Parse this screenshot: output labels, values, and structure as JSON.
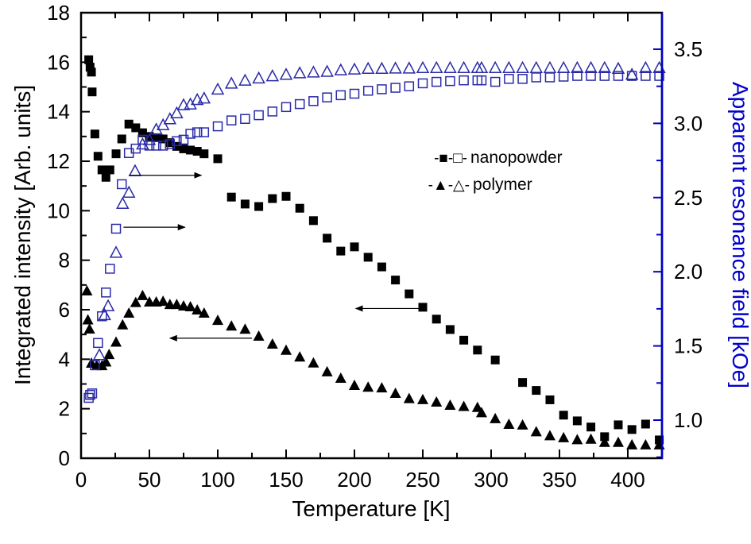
{
  "chart_data": {
    "type": "scatter",
    "title": "",
    "xlabel": "Temperature [K]",
    "ylabel": "Integrated intensity [Arb. units]",
    "y2label": "Apparent resonance field [kOe]",
    "xlim": [
      0,
      425
    ],
    "ylim": [
      0,
      18
    ],
    "y2lim": [
      0.743,
      3.746
    ],
    "xticks": [
      "0",
      "50",
      "100",
      "150",
      "200",
      "250",
      "300",
      "350",
      "400"
    ],
    "yticks": [
      "0",
      "2",
      "4",
      "6",
      "8",
      "10",
      "12",
      "14",
      "16",
      "18"
    ],
    "y2ticks": [
      "1.0",
      "1.5",
      "2.0",
      "2.5",
      "3.0",
      "3.5"
    ],
    "grid": false,
    "legend": {
      "placement": "upper-right-middle",
      "entries": [
        {
          "prefix": "-■-□-",
          "label": "nanopowder"
        },
        {
          "prefix": "-▲-△-",
          "label": "polymer"
        }
      ]
    },
    "colors": {
      "left_axis": "#000000",
      "right_axis": "#0000cc",
      "open_markers": "#2a2aa8"
    },
    "series": [
      {
        "name": "nanopowder intensity",
        "axis": "left",
        "marker": "filled-square",
        "points": [
          [
            5.6,
            16.1
          ],
          [
            6.6,
            15.8
          ],
          [
            7.6,
            15.6
          ],
          [
            8.1,
            14.8
          ],
          [
            10.1,
            13.1
          ],
          [
            12.4,
            12.2
          ],
          [
            15.3,
            11.65
          ],
          [
            18.2,
            11.35
          ],
          [
            21.1,
            11.65
          ],
          [
            25.6,
            12.3
          ],
          [
            29.8,
            12.9
          ],
          [
            35,
            13.5
          ],
          [
            40,
            13.35
          ],
          [
            45,
            13.15
          ],
          [
            50,
            13.0
          ],
          [
            55,
            12.95
          ],
          [
            60,
            12.9
          ],
          [
            65,
            12.75
          ],
          [
            70,
            12.6
          ],
          [
            75,
            12.5
          ],
          [
            80,
            12.45
          ],
          [
            85,
            12.4
          ],
          [
            90,
            12.3
          ],
          [
            100,
            12.1
          ],
          [
            110,
            10.55
          ],
          [
            120,
            10.27
          ],
          [
            130,
            10.17
          ],
          [
            140,
            10.49
          ],
          [
            150,
            10.58
          ],
          [
            160,
            10.1
          ],
          [
            170,
            9.6
          ],
          [
            180,
            8.89
          ],
          [
            190,
            8.37
          ],
          [
            200,
            8.54
          ],
          [
            210,
            8.12
          ],
          [
            220,
            7.73
          ],
          [
            230,
            7.2
          ],
          [
            240,
            6.64
          ],
          [
            250,
            6.1
          ],
          [
            260,
            5.62
          ],
          [
            270,
            5.2
          ],
          [
            280,
            4.77
          ],
          [
            290,
            4.37
          ],
          [
            303,
            3.97
          ],
          [
            323,
            3.06
          ],
          [
            333,
            2.74
          ],
          [
            343,
            2.36
          ],
          [
            353,
            1.74
          ],
          [
            363,
            1.51
          ],
          [
            373,
            1.26
          ],
          [
            383,
            0.87
          ],
          [
            393,
            1.35
          ],
          [
            403,
            1.16
          ],
          [
            413,
            1.38
          ],
          [
            423,
            0.74
          ]
        ]
      },
      {
        "name": "polymer intensity",
        "axis": "left",
        "marker": "filled-triangle",
        "points": [
          [
            4.3,
            6.77
          ],
          [
            5,
            5.6
          ],
          [
            6.2,
            5.23
          ],
          [
            7.6,
            3.85
          ],
          [
            11.4,
            3.75
          ],
          [
            15.3,
            3.75
          ],
          [
            18.2,
            3.9
          ],
          [
            20.5,
            4.2
          ],
          [
            25.6,
            4.7
          ],
          [
            30.4,
            5.4
          ],
          [
            35,
            5.87
          ],
          [
            40,
            6.3
          ],
          [
            45,
            6.58
          ],
          [
            50,
            6.32
          ],
          [
            55,
            6.32
          ],
          [
            60,
            6.35
          ],
          [
            65,
            6.22
          ],
          [
            70,
            6.22
          ],
          [
            75,
            6.16
          ],
          [
            80,
            6.13
          ],
          [
            85,
            6.0
          ],
          [
            90,
            5.87
          ],
          [
            100,
            5.58
          ],
          [
            110,
            5.35
          ],
          [
            120,
            5.22
          ],
          [
            130,
            4.94
          ],
          [
            140,
            4.62
          ],
          [
            150,
            4.37
          ],
          [
            160,
            4.1
          ],
          [
            170,
            3.86
          ],
          [
            180,
            3.5
          ],
          [
            190,
            3.24
          ],
          [
            200,
            2.95
          ],
          [
            210,
            2.88
          ],
          [
            220,
            2.85
          ],
          [
            230,
            2.63
          ],
          [
            240,
            2.42
          ],
          [
            250,
            2.38
          ],
          [
            260,
            2.28
          ],
          [
            270,
            2.15
          ],
          [
            280,
            2.1
          ],
          [
            290,
            2.06
          ],
          [
            293,
            1.85
          ],
          [
            303,
            1.61
          ],
          [
            313,
            1.38
          ],
          [
            323,
            1.35
          ],
          [
            333,
            1.08
          ],
          [
            343,
            0.92
          ],
          [
            353,
            0.84
          ],
          [
            363,
            0.76
          ],
          [
            373,
            0.78
          ],
          [
            383,
            0.65
          ],
          [
            393,
            0.65
          ],
          [
            403,
            0.55
          ],
          [
            413,
            0.55
          ],
          [
            423,
            0.55
          ]
        ]
      },
      {
        "name": "nanopowder resonance field",
        "axis": "right",
        "marker": "open-square",
        "points": [
          [
            5.6,
            1.15
          ],
          [
            6.6,
            1.17
          ],
          [
            8.1,
            1.18
          ],
          [
            10.1,
            1.37
          ],
          [
            12.4,
            1.52
          ],
          [
            15.3,
            1.7
          ],
          [
            18.2,
            1.86
          ],
          [
            21.1,
            2.02
          ],
          [
            25.6,
            2.29
          ],
          [
            29.8,
            2.59
          ],
          [
            35,
            2.8
          ],
          [
            40,
            2.83
          ],
          [
            45,
            2.89
          ],
          [
            50,
            2.85
          ],
          [
            55,
            2.85
          ],
          [
            60,
            2.85
          ],
          [
            65,
            2.86
          ],
          [
            70,
            2.88
          ],
          [
            75,
            2.89
          ],
          [
            80,
            2.93
          ],
          [
            85,
            2.94
          ],
          [
            90,
            2.94
          ],
          [
            100,
            2.98
          ],
          [
            110,
            3.02
          ],
          [
            120,
            3.03
          ],
          [
            130,
            3.055
          ],
          [
            140,
            3.08
          ],
          [
            150,
            3.11
          ],
          [
            160,
            3.13
          ],
          [
            170,
            3.15
          ],
          [
            180,
            3.175
          ],
          [
            190,
            3.19
          ],
          [
            200,
            3.2
          ],
          [
            210,
            3.22
          ],
          [
            220,
            3.23
          ],
          [
            230,
            3.24
          ],
          [
            240,
            3.25
          ],
          [
            250,
            3.27
          ],
          [
            260,
            3.28
          ],
          [
            270,
            3.285
          ],
          [
            280,
            3.29
          ],
          [
            290,
            3.29
          ],
          [
            293,
            3.29
          ],
          [
            303,
            3.28
          ],
          [
            313,
            3.3
          ],
          [
            323,
            3.3
          ],
          [
            333,
            3.31
          ],
          [
            343,
            3.31
          ],
          [
            353,
            3.315
          ],
          [
            363,
            3.32
          ],
          [
            373,
            3.32
          ],
          [
            383,
            3.32
          ],
          [
            393,
            3.32
          ],
          [
            403,
            3.32
          ],
          [
            413,
            3.32
          ],
          [
            423,
            3.32
          ]
        ]
      },
      {
        "name": "polymer resonance field",
        "axis": "right",
        "marker": "open-triangle",
        "points": [
          [
            13.4,
            1.44
          ],
          [
            17.2,
            1.71
          ],
          [
            19.8,
            1.77
          ],
          [
            25.6,
            2.13
          ],
          [
            30.4,
            2.46
          ],
          [
            35,
            2.535
          ],
          [
            39.5,
            2.68
          ],
          [
            45,
            2.86
          ],
          [
            50,
            2.89
          ],
          [
            55,
            2.96
          ],
          [
            60,
            2.99
          ],
          [
            65,
            3.03
          ],
          [
            70,
            3.07
          ],
          [
            75,
            3.125
          ],
          [
            80,
            3.13
          ],
          [
            85,
            3.16
          ],
          [
            90,
            3.17
          ],
          [
            100,
            3.23
          ],
          [
            110,
            3.27
          ],
          [
            120,
            3.29
          ],
          [
            130,
            3.305
          ],
          [
            140,
            3.32
          ],
          [
            150,
            3.33
          ],
          [
            160,
            3.34
          ],
          [
            170,
            3.345
          ],
          [
            180,
            3.35
          ],
          [
            190,
            3.36
          ],
          [
            200,
            3.365
          ],
          [
            210,
            3.37
          ],
          [
            220,
            3.37
          ],
          [
            230,
            3.372
          ],
          [
            240,
            3.372
          ],
          [
            250,
            3.375
          ],
          [
            260,
            3.375
          ],
          [
            270,
            3.375
          ],
          [
            280,
            3.375
          ],
          [
            290,
            3.375
          ],
          [
            293,
            3.375
          ],
          [
            303,
            3.375
          ],
          [
            313,
            3.375
          ],
          [
            323,
            3.375
          ],
          [
            333,
            3.375
          ],
          [
            343,
            3.375
          ],
          [
            353,
            3.375
          ],
          [
            363,
            3.375
          ],
          [
            373,
            3.375
          ],
          [
            383,
            3.375
          ],
          [
            393,
            3.37
          ],
          [
            403,
            3.33
          ],
          [
            413,
            3.375
          ],
          [
            423,
            3.375
          ]
        ]
      }
    ],
    "annotations": [
      {
        "type": "arrow",
        "direction": "right",
        "from": [
          35,
          2.65
        ],
        "to": [
          88,
          2.65
        ],
        "axis": "right"
      },
      {
        "type": "arrow",
        "direction": "right",
        "from": [
          31,
          2.3
        ],
        "to": [
          76,
          2.3
        ],
        "axis": "right"
      },
      {
        "type": "arrow",
        "direction": "left",
        "from": [
          248,
          6.05
        ],
        "to": [
          201,
          6.05
        ],
        "axis": "left"
      },
      {
        "type": "arrow",
        "direction": "left",
        "from": [
          125,
          4.85
        ],
        "to": [
          65,
          4.85
        ],
        "axis": "left"
      }
    ]
  }
}
